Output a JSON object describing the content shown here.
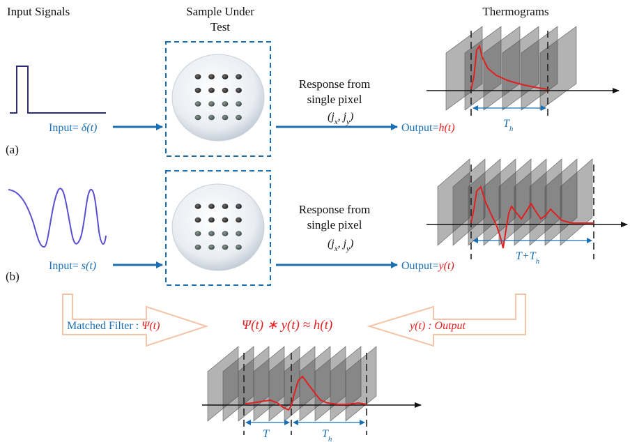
{
  "headers": {
    "input_signals": "Input Signals",
    "sample_line1": "Sample Under",
    "sample_line2": "Test",
    "thermograms": "Thermograms"
  },
  "row_a": {
    "label": "(a)",
    "input_prefix": "Input= ",
    "input_fn": "δ(t)",
    "response_line1": "Response from",
    "response_line2": "single pixel",
    "pixel": "(jx, jy)",
    "output_prefix": "Output=",
    "output_fn": "h(t)",
    "window_label": "Th"
  },
  "row_b": {
    "label": "(b)",
    "input_prefix": "Input= ",
    "input_fn": "s(t)",
    "response_line1": "Response from",
    "response_line2": "single pixel",
    "pixel": "(jx, jy)",
    "output_prefix": "Output=",
    "output_fn": "y(t)",
    "window_label": "T+Th"
  },
  "bottom": {
    "matched_filter_prefix": "Matched Filter : ",
    "matched_filter_fn": "Ψ(t)",
    "equation": "Ψ(t) ∗ y(t) ≈ h(t)",
    "output_label": "y(t) : Output",
    "window1_label": "T",
    "window2_label": "Th"
  },
  "colors": {
    "arrow_blue": "#1a6fb3",
    "signal_navy": "#2d2a7a",
    "signal_violet": "#5a4fd0",
    "response_red": "#e02020",
    "hollow_arrow": "#f5c4a8",
    "frame_gray": "#6a6a6a"
  }
}
